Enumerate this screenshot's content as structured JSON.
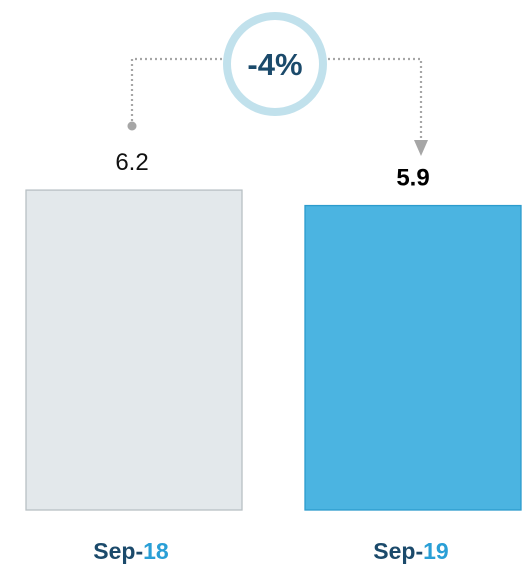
{
  "chart_data": {
    "type": "bar",
    "categories": [
      {
        "prefix": "Sep-",
        "suffix": "18"
      },
      {
        "prefix": "Sep-",
        "suffix": "19"
      }
    ],
    "values": [
      6.2,
      5.9
    ],
    "value_labels": [
      "6.2",
      "5.9"
    ],
    "change_label": "-4%",
    "colors": {
      "previous_fill": "#e3e8eb",
      "previous_stroke": "#b8c0c4",
      "current_fill": "#4bb4e1",
      "current_stroke": "#2c9ccd",
      "category_prefix": "#1b4a6b",
      "category_suffix": "#2a9fd6",
      "badge_ring": "#c1e1ec",
      "badge_text": "#1b4a6b",
      "connector": "#a6a6a6"
    }
  }
}
